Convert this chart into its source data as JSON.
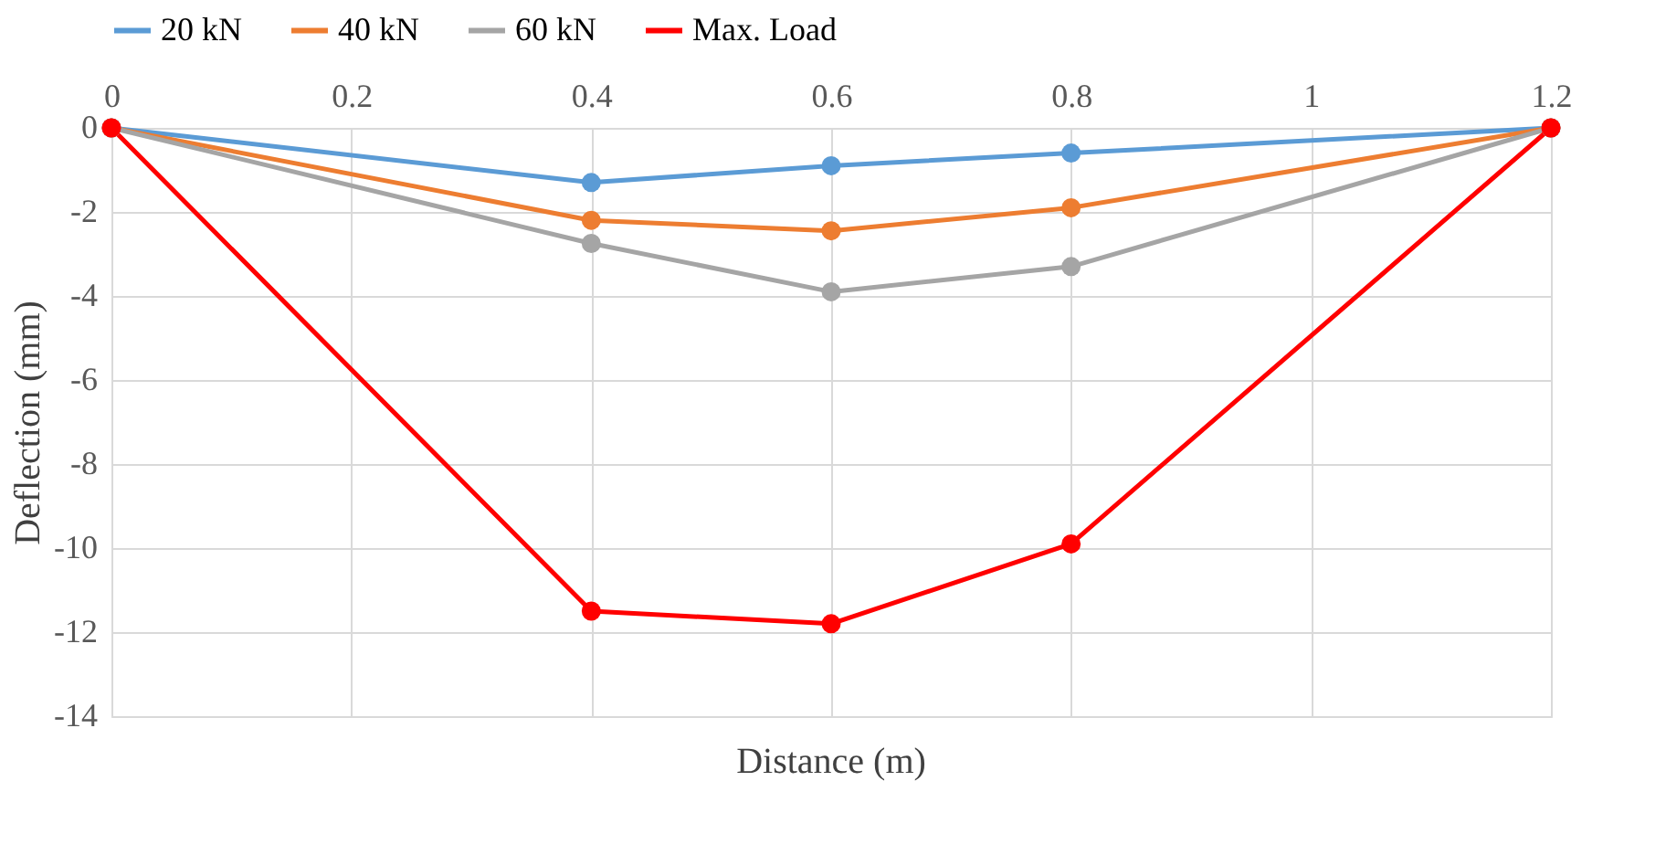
{
  "chart_data": {
    "type": "line",
    "xlabel": "Distance (m)",
    "ylabel": "Deflection (mm)",
    "x": [
      0,
      0.4,
      0.6,
      0.8,
      1.2
    ],
    "series": [
      {
        "name": "20 kN",
        "color": "#5b9bd5",
        "values": [
          0,
          -1.3,
          -0.9,
          -0.6,
          0
        ]
      },
      {
        "name": "40 kN",
        "color": "#ed7d31",
        "values": [
          0,
          -2.2,
          -2.45,
          -1.9,
          0
        ]
      },
      {
        "name": "60 kN",
        "color": "#a5a5a5",
        "values": [
          0,
          -2.75,
          -3.9,
          -3.3,
          0
        ]
      },
      {
        "name": "Max. Load",
        "color": "#ff0000",
        "values": [
          0,
          -11.5,
          -11.8,
          -9.9,
          0
        ]
      }
    ],
    "xlim": [
      0,
      1.2
    ],
    "xticks": [
      0,
      0.2,
      0.4,
      0.6,
      0.8,
      1,
      1.2
    ],
    "ylim": [
      -14,
      0
    ],
    "yticks": [
      -14,
      -12,
      -10,
      -8,
      -6,
      -4,
      -2,
      0
    ],
    "grid": true,
    "legend": "top",
    "marker": "circle",
    "line_style": "solid"
  }
}
